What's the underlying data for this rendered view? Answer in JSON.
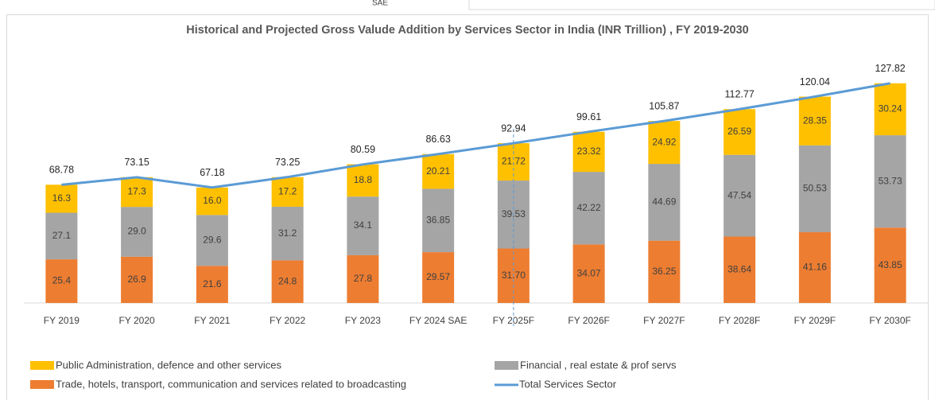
{
  "caption_fragment": "SAE",
  "chart_data": {
    "type": "bar",
    "stacked": true,
    "title": "Historical and Projected Gross Valude Addition by Services Sector in India (INR Trillion)  , FY 2019-2030",
    "categories": [
      "FY 2019",
      "FY 2020",
      "FY 2021",
      "FY 2022",
      "FY 2023",
      "FY 2024 SAE",
      "FY 2025F",
      "FY 2026F",
      "FY 2027F",
      "FY 2028F",
      "FY 2029F",
      "FY 2030F"
    ],
    "ylim": [
      0,
      130
    ],
    "series": [
      {
        "name": "Trade, hotels, transport, communication and services related to broadcasting",
        "color": "#ed7d31",
        "values": [
          25.4,
          26.9,
          21.6,
          24.8,
          27.8,
          29.57,
          31.7,
          34.07,
          36.25,
          38.64,
          41.16,
          43.85
        ],
        "value_labels": [
          "25.4",
          "26.9",
          "21.6",
          "24.8",
          "27.8",
          "29.57",
          "31.70",
          "34.07",
          "36.25",
          "38.64",
          "41.16",
          "43.85"
        ]
      },
      {
        "name": "Financial , real estate & prof servs",
        "color": "#a5a5a5",
        "values": [
          27.1,
          29,
          29.6,
          31.2,
          34.1,
          36.85,
          39.53,
          42.22,
          44.69,
          47.54,
          50.53,
          53.73
        ],
        "value_labels": [
          "27.1",
          "29.0",
          "29.6",
          "31.2",
          "34.1",
          "36.85",
          "39.53",
          "42.22",
          "44.69",
          "47.54",
          "50.53",
          "53.73"
        ]
      },
      {
        "name": "Public Administration, defence and other services",
        "color": "#ffc000",
        "values": [
          16.3,
          17.3,
          16,
          17.2,
          18.8,
          20.21,
          21.72,
          23.32,
          24.92,
          26.59,
          28.35,
          30.24
        ],
        "value_labels": [
          "16.3",
          "17.3",
          "16.0",
          "17.2",
          "18.8",
          "20.21",
          "21.72",
          "23.32",
          "24.92",
          "26.59",
          "28.35",
          "30.24"
        ]
      },
      {
        "name": "Total Services Sector",
        "color": "#5b9bd5",
        "type": "line",
        "values": [
          68.78,
          73.15,
          67.18,
          73.25,
          80.59,
          86.63,
          92.94,
          99.61,
          105.87,
          112.77,
          120.04,
          127.82
        ]
      }
    ]
  }
}
